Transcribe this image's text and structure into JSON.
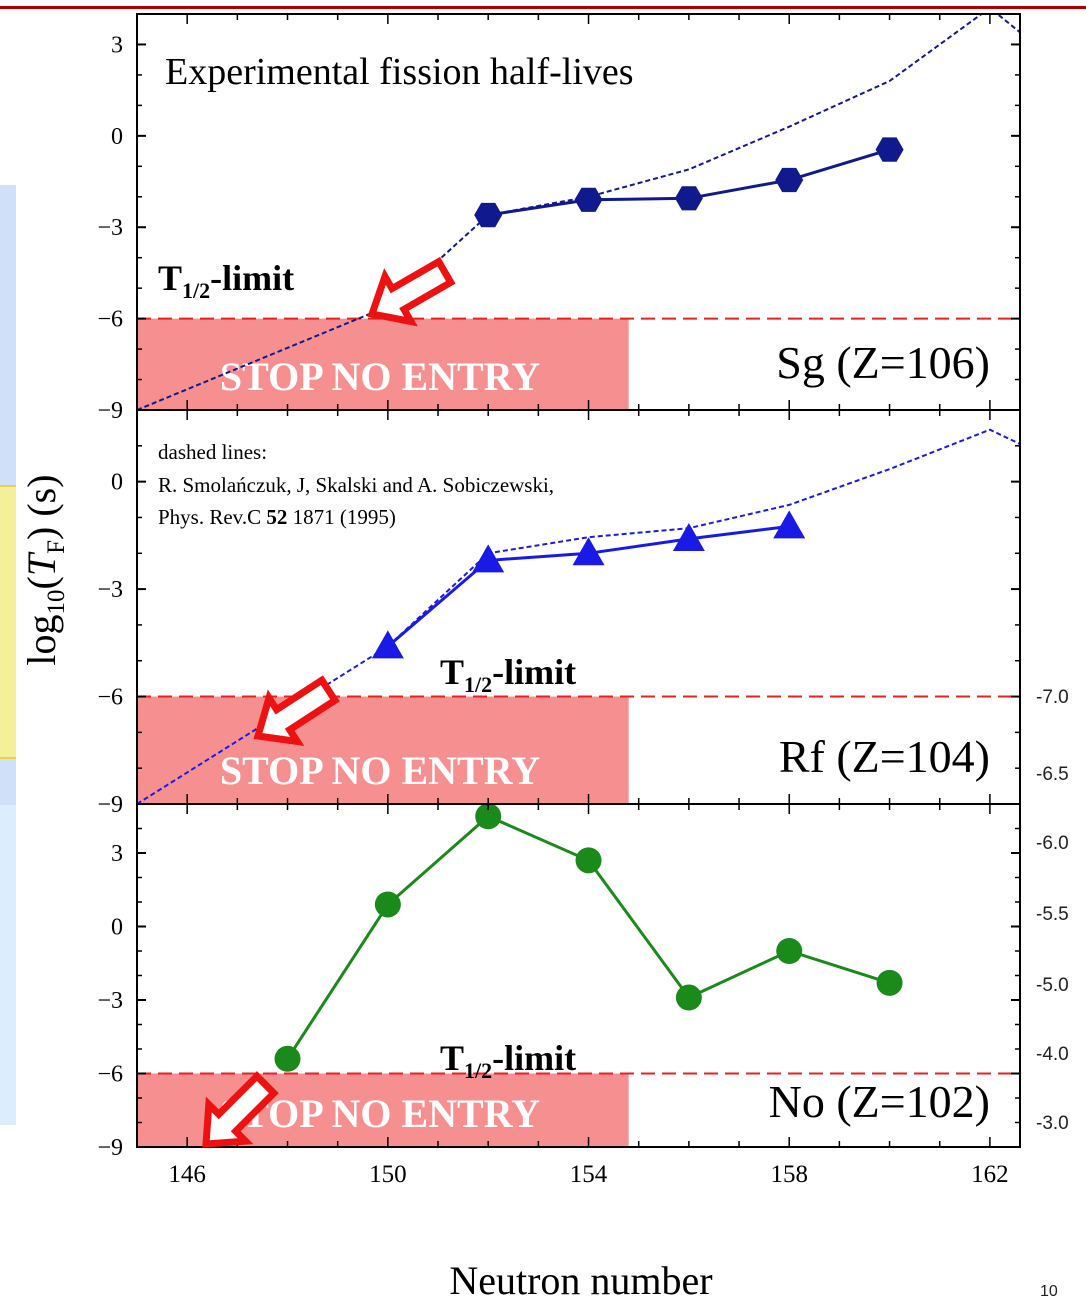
{
  "chart_data": {
    "type": "line",
    "title": "Experimental fission half-lives",
    "xlabel": "Neutron number",
    "ylabel_main": "log",
    "ylabel_sub": "10",
    "ylabel_paren_open": "(",
    "ylabel_T": "T",
    "ylabel_F": "F",
    "ylabel_tail": ") (s)",
    "xlim": [
      145,
      162.6
    ],
    "x_ticks": [
      "146",
      "150",
      "154",
      "158",
      "162"
    ],
    "x_tick_values": [
      146,
      150,
      154,
      158,
      162
    ],
    "limit_value": -6,
    "limit_label": "T",
    "limit_sub": "1/2",
    "limit_suffix": "-limit",
    "stop_label": "STOP NO ENTRY",
    "reference": {
      "line1": "dashed lines:",
      "line2": "R. Smolańczuk, J, Skalski and A. Sobiczewski,",
      "line3_a": "Phys. Rev.C ",
      "line3_b": "52",
      "line3_c": " 1871 (1995)"
    },
    "panels": [
      {
        "element_label": "Sg  (Z=106)",
        "ylim": [
          -9,
          4
        ],
        "y_ticks": [
          "3",
          "0",
          "−3",
          "−6",
          "−9"
        ],
        "y_tick_values": [
          3,
          0,
          -3,
          -6,
          -9
        ],
        "color": "#101a8c",
        "marker": "hexagon",
        "experimental": {
          "x": [
            152,
            154,
            156,
            158,
            160
          ],
          "y": [
            -2.6,
            -2.1,
            -2.05,
            -1.45,
            -0.45
          ]
        },
        "theory": {
          "x": [
            145,
            150,
            152,
            154,
            156,
            158,
            160,
            162,
            162.6
          ],
          "y": [
            -9.0,
            -5.6,
            -2.6,
            -2.0,
            -1.1,
            0.3,
            1.8,
            4.2,
            3.4
          ]
        }
      },
      {
        "element_label": "Rf  (Z=104)",
        "ylim": [
          -9,
          2
        ],
        "y_ticks": [
          "0",
          "−3",
          "−6",
          "−9"
        ],
        "y_tick_values": [
          0,
          -3,
          -6,
          -9
        ],
        "color": "#1a1ae6",
        "marker": "triangle",
        "experimental": {
          "x": [
            150,
            152,
            154,
            156,
            158
          ],
          "y": [
            -4.6,
            -2.2,
            -2.0,
            -1.6,
            -1.25
          ]
        },
        "theory": {
          "x": [
            145,
            150,
            152,
            154,
            156,
            158,
            160,
            162,
            162.6
          ],
          "y": [
            -9.0,
            -4.6,
            -2.0,
            -1.55,
            -1.3,
            -0.65,
            0.35,
            1.45,
            1.05
          ]
        }
      },
      {
        "element_label": "No (Z=102)",
        "ylim": [
          -9,
          5
        ],
        "y_ticks": [
          "3",
          "0",
          "−3",
          "−6",
          "−9"
        ],
        "y_tick_values": [
          3,
          0,
          -3,
          -6,
          -9
        ],
        "color": "#1a8a1a",
        "marker": "circle",
        "experimental": {
          "x": [
            148,
            150,
            152,
            154,
            156,
            158,
            160
          ],
          "y": [
            -5.4,
            0.9,
            4.5,
            2.7,
            -2.9,
            -1.0,
            -2.3
          ]
        }
      }
    ],
    "right_ticks": [
      "-7.0",
      "-6.5",
      "-6.0",
      "-5.5",
      "-5.0",
      "-4.0",
      "-3.0"
    ],
    "page_number": "10"
  }
}
